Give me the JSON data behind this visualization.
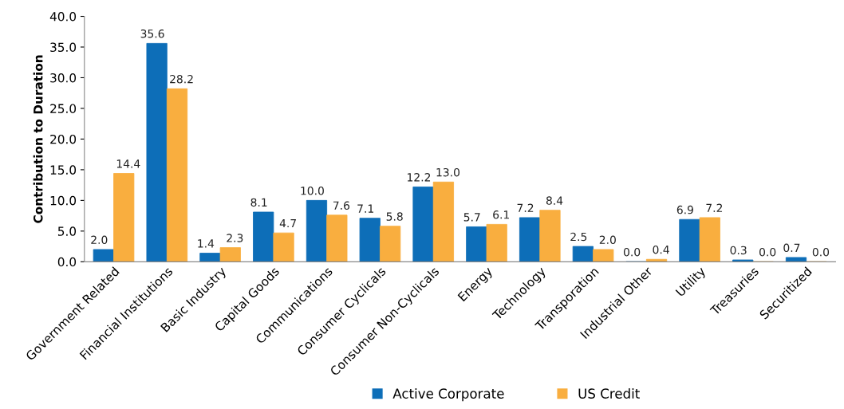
{
  "chart_data": {
    "type": "bar",
    "ylabel": "Contribution to Duration",
    "categories": [
      "Government Related",
      "Financial Institutions",
      "Basic Industry",
      "Capital Goods",
      "Communications",
      "Consumer Cyclicals",
      "Consumer Non-Cyclicals",
      "Energy",
      "Technology",
      "Transporation",
      "Industrial Other",
      "Utility",
      "Treasuries",
      "Securitized"
    ],
    "series": [
      {
        "name": "Active Corporate",
        "color": "#0d6eb8",
        "values": [
          2.0,
          35.6,
          1.4,
          8.1,
          10.0,
          7.1,
          12.2,
          5.7,
          7.2,
          2.5,
          0.0,
          6.9,
          0.3,
          0.7
        ],
        "value_labels": [
          "2.0",
          "35.6",
          "1.4",
          "8.1",
          "10.0",
          "7.1",
          "12.2",
          "5.7",
          "7.2",
          "2.5",
          "0.0",
          "6.9",
          "0.3",
          "0.7"
        ]
      },
      {
        "name": "US Credit",
        "color": "#f9ae3f",
        "values": [
          14.4,
          28.2,
          2.3,
          4.7,
          7.6,
          5.8,
          13.0,
          6.1,
          8.4,
          2.0,
          0.4,
          7.2,
          0.0,
          0.0
        ],
        "value_labels": [
          "14.4",
          "28.2",
          "2.3",
          "4.7",
          "7.6",
          "5.8",
          "13.0",
          "6.1",
          "8.4",
          "2.0",
          "0.4",
          "7.2",
          "0.0",
          "0.0"
        ]
      }
    ],
    "ylim": [
      0,
      40
    ],
    "yticks": [
      {
        "value": 0,
        "label": "0.0"
      },
      {
        "value": 5,
        "label": "5.0"
      },
      {
        "value": 10,
        "label": "10.0"
      },
      {
        "value": 15,
        "label": "15.0"
      },
      {
        "value": 20,
        "label": "20.0"
      },
      {
        "value": 25,
        "label": "25.0"
      },
      {
        "value": 30,
        "label": "30.0"
      },
      {
        "value": 35,
        "label": "35.0"
      },
      {
        "value": 40,
        "label": "40.0"
      }
    ],
    "grid": false,
    "legend": "bottom"
  }
}
